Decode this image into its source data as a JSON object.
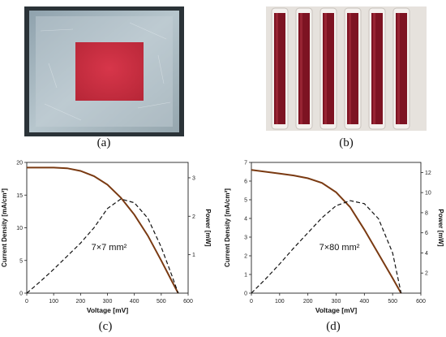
{
  "panels": {
    "a": {
      "caption": "(a)"
    },
    "b": {
      "caption": "(b)"
    },
    "c": {
      "caption": "(c)"
    },
    "d": {
      "caption": "(d)"
    }
  },
  "colors": {
    "jv_curve": "#7a3a12",
    "power_curve": "#111111",
    "dye_red": "#c43042",
    "tube_dye": "#7d1322"
  },
  "chart_data": [
    {
      "type": "line",
      "panel": "c",
      "annotation": "7×7 mm²",
      "xlabel": "Voltage [mV]",
      "ylabel": "Current Density [mA/cm²]",
      "y2label": "Power [mW]",
      "xlim": [
        0,
        600
      ],
      "ylim": [
        0,
        20
      ],
      "y2lim": [
        0,
        3.4
      ],
      "xticks": [
        "0",
        "100",
        "200",
        "300",
        "400",
        "500",
        "600"
      ],
      "yticks": [
        "0",
        "5",
        "10",
        "15",
        "20"
      ],
      "y2ticks": [
        "1",
        "2",
        "3"
      ],
      "series": [
        {
          "axis": "left",
          "style": "solid",
          "x": [
            0,
            100,
            150,
            200,
            250,
            300,
            350,
            400,
            450,
            500,
            540,
            563
          ],
          "y": [
            19.2,
            19.2,
            19.1,
            18.7,
            17.9,
            16.6,
            14.6,
            12.0,
            8.8,
            5.0,
            1.8,
            0
          ]
        },
        {
          "axis": "right",
          "style": "dashed",
          "x": [
            0,
            50,
            100,
            150,
            200,
            250,
            300,
            350,
            400,
            450,
            500,
            540,
            563
          ],
          "y": [
            0,
            0.3,
            0.62,
            0.96,
            1.3,
            1.7,
            2.2,
            2.45,
            2.35,
            1.95,
            1.2,
            0.45,
            0
          ]
        }
      ]
    },
    {
      "type": "line",
      "panel": "d",
      "annotation": "7×80 mm²",
      "xlabel": "Voltage [mV]",
      "ylabel": "Current Density [mA/cm²]",
      "y2label": "Power [mW]",
      "xlim": [
        0,
        600
      ],
      "ylim": [
        0,
        7
      ],
      "y2lim": [
        0,
        13
      ],
      "xticks": [
        "0",
        "100",
        "200",
        "300",
        "400",
        "500",
        "600"
      ],
      "yticks": [
        "0",
        "1",
        "2",
        "3",
        "4",
        "5",
        "6",
        "7"
      ],
      "y2ticks": [
        "2",
        "4",
        "6",
        "8",
        "10",
        "12"
      ],
      "series": [
        {
          "axis": "left",
          "style": "solid",
          "x": [
            0,
            50,
            100,
            150,
            200,
            250,
            300,
            350,
            400,
            450,
            500,
            530
          ],
          "y": [
            6.6,
            6.5,
            6.4,
            6.3,
            6.15,
            5.9,
            5.4,
            4.6,
            3.4,
            2.1,
            0.8,
            0
          ]
        },
        {
          "axis": "right",
          "style": "dashed",
          "x": [
            0,
            50,
            100,
            150,
            200,
            250,
            300,
            350,
            400,
            450,
            500,
            530
          ],
          "y": [
            0,
            1.4,
            2.9,
            4.5,
            6.0,
            7.5,
            8.7,
            9.2,
            8.9,
            7.4,
            4.0,
            0
          ]
        }
      ]
    }
  ]
}
